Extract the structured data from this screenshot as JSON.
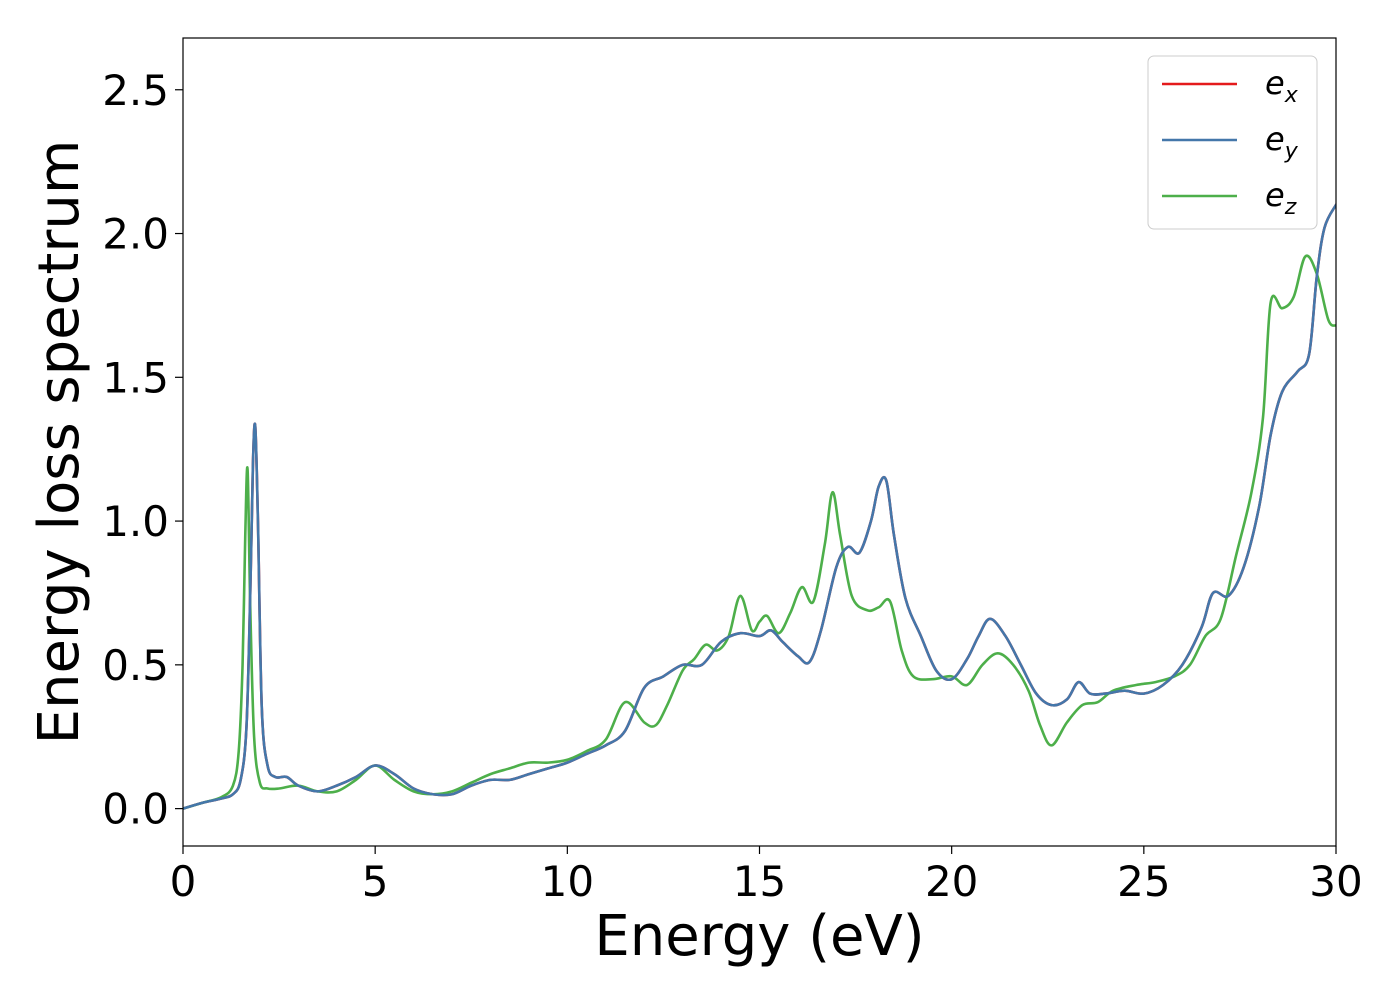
{
  "chart_data": {
    "type": "line",
    "xlabel": "Energy (eV)",
    "ylabel": "Energy loss spectrum",
    "xlim": [
      0,
      30
    ],
    "ylim": [
      -0.13,
      2.68
    ],
    "xticks": [
      0,
      5,
      10,
      15,
      20,
      25,
      30
    ],
    "xtick_labels": [
      "0",
      "5",
      "10",
      "15",
      "20",
      "25",
      "30"
    ],
    "yticks": [
      0.0,
      0.5,
      1.0,
      1.5,
      2.0,
      2.5
    ],
    "ytick_labels": [
      "0.0",
      "0.5",
      "1.0",
      "1.5",
      "2.0",
      "2.5"
    ],
    "grid": false,
    "legend_position": "top-right",
    "series": [
      {
        "name": "e",
        "subscript": "x",
        "color": "#e41a1c",
        "x": [
          0,
          0.5,
          1.0,
          1.3,
          1.5,
          1.65,
          1.75,
          1.82,
          1.88,
          1.95,
          2.05,
          2.2,
          2.4,
          2.7,
          3.0,
          3.5,
          4.0,
          4.5,
          5.0,
          5.5,
          6.0,
          6.5,
          7.0,
          7.5,
          8.0,
          8.5,
          9.0,
          9.5,
          10.0,
          10.5,
          11.0,
          11.5,
          12.0,
          12.5,
          13.0,
          13.5,
          14.0,
          14.5,
          15.0,
          15.3,
          15.6,
          16.0,
          16.3,
          16.6,
          17.0,
          17.3,
          17.6,
          17.9,
          18.1,
          18.3,
          18.5,
          18.8,
          19.2,
          19.6,
          20.0,
          20.4,
          20.7,
          21.0,
          21.4,
          21.8,
          22.2,
          22.6,
          23.0,
          23.3,
          23.6,
          24.0,
          24.5,
          25.0,
          25.5,
          26.0,
          26.5,
          26.8,
          27.2,
          27.6,
          28.0,
          28.3,
          28.6,
          29.0,
          29.3,
          29.5,
          29.7,
          30.0
        ],
        "y": [
          0.0,
          0.02,
          0.035,
          0.05,
          0.1,
          0.28,
          0.75,
          1.2,
          1.33,
          1.0,
          0.35,
          0.15,
          0.11,
          0.11,
          0.08,
          0.06,
          0.08,
          0.11,
          0.15,
          0.12,
          0.07,
          0.05,
          0.05,
          0.08,
          0.1,
          0.1,
          0.12,
          0.14,
          0.16,
          0.19,
          0.22,
          0.27,
          0.42,
          0.46,
          0.5,
          0.5,
          0.58,
          0.61,
          0.6,
          0.62,
          0.58,
          0.53,
          0.51,
          0.62,
          0.84,
          0.91,
          0.89,
          1.0,
          1.12,
          1.14,
          0.95,
          0.73,
          0.6,
          0.48,
          0.45,
          0.52,
          0.6,
          0.66,
          0.6,
          0.5,
          0.4,
          0.36,
          0.38,
          0.44,
          0.4,
          0.4,
          0.41,
          0.4,
          0.43,
          0.5,
          0.63,
          0.75,
          0.74,
          0.84,
          1.05,
          1.3,
          1.45,
          1.52,
          1.58,
          1.85,
          2.02,
          2.1
        ]
      },
      {
        "name": "e",
        "subscript": "y",
        "color": "#4477aa",
        "x": [
          0,
          0.5,
          1.0,
          1.3,
          1.5,
          1.65,
          1.75,
          1.82,
          1.88,
          1.95,
          2.05,
          2.2,
          2.4,
          2.7,
          3.0,
          3.5,
          4.0,
          4.5,
          5.0,
          5.5,
          6.0,
          6.5,
          7.0,
          7.5,
          8.0,
          8.5,
          9.0,
          9.5,
          10.0,
          10.5,
          11.0,
          11.5,
          12.0,
          12.5,
          13.0,
          13.5,
          14.0,
          14.5,
          15.0,
          15.3,
          15.6,
          16.0,
          16.3,
          16.6,
          17.0,
          17.3,
          17.6,
          17.9,
          18.1,
          18.3,
          18.5,
          18.8,
          19.2,
          19.6,
          20.0,
          20.4,
          20.7,
          21.0,
          21.4,
          21.8,
          22.2,
          22.6,
          23.0,
          23.3,
          23.6,
          24.0,
          24.5,
          25.0,
          25.5,
          26.0,
          26.5,
          26.8,
          27.2,
          27.6,
          28.0,
          28.3,
          28.6,
          29.0,
          29.3,
          29.5,
          29.7,
          30.0
        ],
        "y": [
          0.0,
          0.02,
          0.035,
          0.05,
          0.1,
          0.28,
          0.75,
          1.2,
          1.33,
          1.0,
          0.35,
          0.15,
          0.11,
          0.11,
          0.08,
          0.06,
          0.08,
          0.11,
          0.15,
          0.12,
          0.07,
          0.05,
          0.05,
          0.08,
          0.1,
          0.1,
          0.12,
          0.14,
          0.16,
          0.19,
          0.22,
          0.27,
          0.42,
          0.46,
          0.5,
          0.5,
          0.58,
          0.61,
          0.6,
          0.62,
          0.58,
          0.53,
          0.51,
          0.62,
          0.84,
          0.91,
          0.89,
          1.0,
          1.12,
          1.14,
          0.95,
          0.73,
          0.6,
          0.48,
          0.45,
          0.52,
          0.6,
          0.66,
          0.6,
          0.5,
          0.4,
          0.36,
          0.38,
          0.44,
          0.4,
          0.4,
          0.41,
          0.4,
          0.43,
          0.5,
          0.63,
          0.75,
          0.74,
          0.84,
          1.05,
          1.3,
          1.45,
          1.52,
          1.58,
          1.85,
          2.02,
          2.1
        ]
      },
      {
        "name": "e",
        "subscript": "z",
        "color": "#4daf4a",
        "x": [
          0,
          0.5,
          1.0,
          1.3,
          1.45,
          1.55,
          1.62,
          1.68,
          1.75,
          1.85,
          2.0,
          2.2,
          2.5,
          3.0,
          3.5,
          4.0,
          4.5,
          5.0,
          5.5,
          6.0,
          6.5,
          7.0,
          7.5,
          8.0,
          8.5,
          9.0,
          9.5,
          10.0,
          10.5,
          11.0,
          11.5,
          12.0,
          12.3,
          12.6,
          13.0,
          13.3,
          13.6,
          13.9,
          14.2,
          14.5,
          14.8,
          15.0,
          15.2,
          15.5,
          15.8,
          16.1,
          16.4,
          16.7,
          16.9,
          17.1,
          17.4,
          17.8,
          18.1,
          18.4,
          18.7,
          19.0,
          19.5,
          20.0,
          20.4,
          20.8,
          21.2,
          21.6,
          22.0,
          22.3,
          22.6,
          23.0,
          23.4,
          23.8,
          24.2,
          24.8,
          25.3,
          25.8,
          26.2,
          26.6,
          27.0,
          27.4,
          27.8,
          28.1,
          28.3,
          28.6,
          28.9,
          29.2,
          29.5,
          29.8,
          30.0
        ],
        "y": [
          0.0,
          0.02,
          0.04,
          0.08,
          0.2,
          0.5,
          0.95,
          1.18,
          0.7,
          0.25,
          0.09,
          0.07,
          0.07,
          0.08,
          0.06,
          0.06,
          0.1,
          0.15,
          0.1,
          0.06,
          0.05,
          0.06,
          0.09,
          0.12,
          0.14,
          0.16,
          0.16,
          0.17,
          0.2,
          0.24,
          0.37,
          0.3,
          0.29,
          0.36,
          0.48,
          0.52,
          0.57,
          0.55,
          0.6,
          0.74,
          0.62,
          0.65,
          0.67,
          0.61,
          0.68,
          0.77,
          0.72,
          0.92,
          1.1,
          0.95,
          0.74,
          0.69,
          0.7,
          0.72,
          0.55,
          0.46,
          0.45,
          0.46,
          0.43,
          0.5,
          0.54,
          0.5,
          0.41,
          0.29,
          0.22,
          0.3,
          0.36,
          0.37,
          0.41,
          0.43,
          0.44,
          0.46,
          0.5,
          0.6,
          0.66,
          0.88,
          1.1,
          1.36,
          1.76,
          1.74,
          1.78,
          1.92,
          1.86,
          1.7,
          1.68
        ]
      }
    ]
  }
}
